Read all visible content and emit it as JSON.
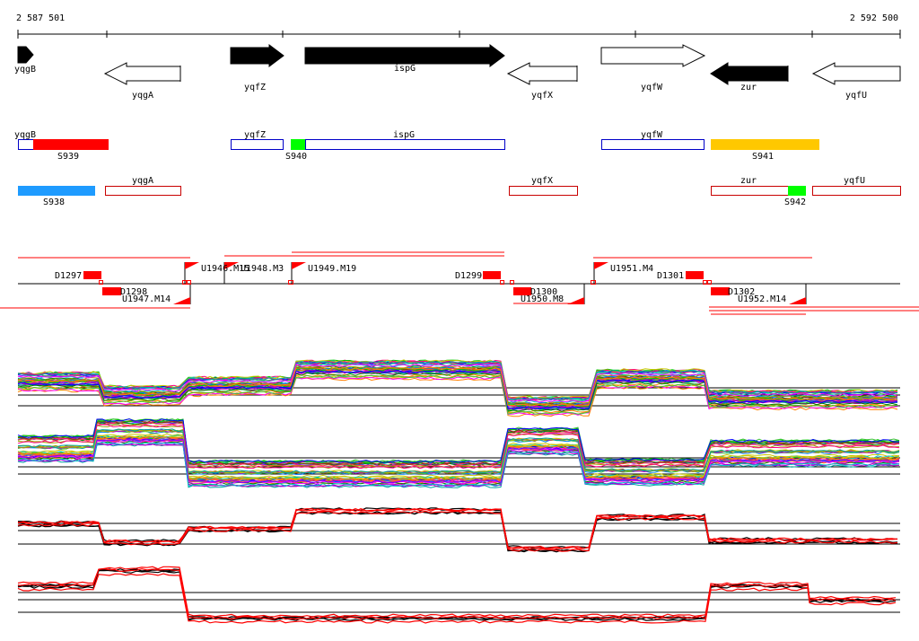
{
  "coordinates": {
    "start": "2 587 501",
    "end": "2 592 500"
  },
  "genes": [
    {
      "id": "yqgB",
      "label": "yqgB",
      "strand": "+",
      "filled": true
    },
    {
      "id": "yqgA",
      "label": "yqgA",
      "strand": "-",
      "filled": false
    },
    {
      "id": "yqfZ",
      "label": "yqfZ",
      "strand": "+",
      "filled": true
    },
    {
      "id": "ispG",
      "label": "ispG",
      "strand": "+",
      "filled": true
    },
    {
      "id": "yqfX",
      "label": "yqfX",
      "strand": "-",
      "filled": false
    },
    {
      "id": "yqfW",
      "label": "yqfW",
      "strand": "+",
      "filled": false
    },
    {
      "id": "zur",
      "label": "zur",
      "strand": "-",
      "filled": true
    },
    {
      "id": "yqfU",
      "label": "yqfU",
      "strand": "-",
      "filled": false
    }
  ],
  "segments_plus": [
    {
      "label": "yqgB",
      "kind": "gene"
    },
    {
      "label": "S939",
      "kind": "segment",
      "color": "#ff0000"
    },
    {
      "label": "yqfZ",
      "kind": "gene"
    },
    {
      "label": "S940",
      "kind": "segment",
      "color": "#00ff00"
    },
    {
      "label": "ispG",
      "kind": "gene"
    },
    {
      "label": "yqfW",
      "kind": "gene"
    },
    {
      "label": "S941",
      "kind": "segment",
      "color": "#ffc800"
    }
  ],
  "segments_minus": [
    {
      "label": "S938",
      "kind": "segment",
      "color": "#1e9bff"
    },
    {
      "label": "yqgA",
      "kind": "gene"
    },
    {
      "label": "yqfX",
      "kind": "gene"
    },
    {
      "label": "zur",
      "kind": "gene"
    },
    {
      "label": "S942",
      "kind": "segment",
      "color": "#00ff00"
    },
    {
      "label": "yqfU",
      "kind": "gene"
    }
  ],
  "features": {
    "down": [
      "D1297",
      "D1298",
      "D1299",
      "D1300",
      "D1301",
      "D1302"
    ],
    "up": [
      "U1946.M15",
      "U1948.M3",
      "U1949.M19",
      "U1951.M4",
      "U1947.M14",
      "U1950.M8",
      "U1952.M14"
    ]
  },
  "colors": {
    "gene_plus": "#0000c8",
    "gene_minus": "#c80000",
    "feature": "#ff0000",
    "profile_a": "#000000",
    "profile_b": "#ff0000"
  }
}
